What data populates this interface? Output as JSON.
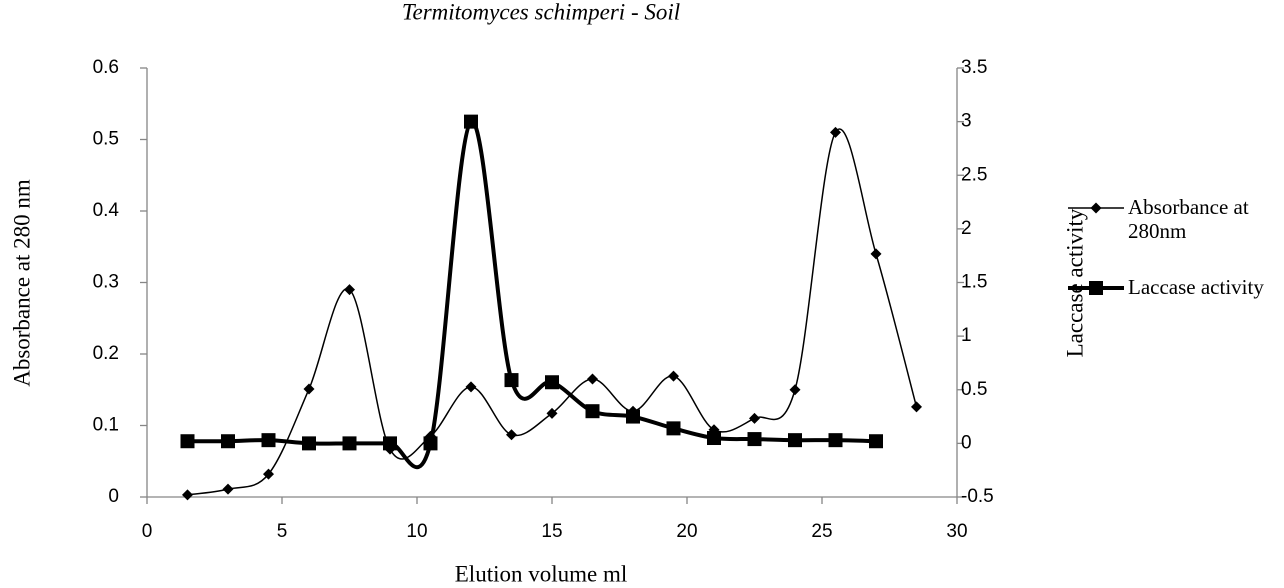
{
  "chart_data": {
    "type": "line",
    "title": "Termitomyces schimperi - Soil",
    "x_label": "Elution volume ml",
    "y_label": "Absorbance at 280 nm",
    "y2_label": "Laccase activity",
    "xlim": [
      0,
      30
    ],
    "xticks": [
      0,
      5,
      10,
      15,
      20,
      25,
      30
    ],
    "ylim": [
      0,
      0.6
    ],
    "yticks": [
      0,
      0.1,
      0.2,
      0.3,
      0.4,
      0.5,
      0.6
    ],
    "y2lim": [
      -0.5,
      3.5
    ],
    "y2ticks": [
      -0.5,
      0,
      0.5,
      1,
      1.5,
      2,
      2.5,
      3,
      3.5
    ],
    "grid": false,
    "legend": "right",
    "smooth": true,
    "series": [
      {
        "name": "Absorbance at 280nm",
        "color": "#000000",
        "marker": "diamond",
        "width": 1.5,
        "x": [
          1.5,
          3,
          4.5,
          6,
          7.5,
          9,
          10.5,
          12,
          13.5,
          15,
          16.5,
          18,
          19.5,
          21,
          22.5,
          24,
          25.5,
          27,
          28.5
        ],
        "values": [
          0.003,
          0.011,
          0.032,
          0.151,
          0.29,
          0.067,
          0.085,
          0.154,
          0.087,
          0.117,
          0.165,
          0.12,
          0.169,
          0.094,
          0.11,
          0.15,
          0.51,
          0.34,
          0.126
        ]
      },
      {
        "name": "Laccase activity",
        "color": "#000000",
        "marker": "square",
        "width": 4,
        "axis": "y2",
        "x": [
          1.5,
          3,
          4.5,
          6,
          7.5,
          9,
          10.5,
          12,
          13.5,
          15,
          16.5,
          18,
          19.5,
          21,
          22.5,
          24,
          25.5,
          27
        ],
        "values": [
          0.02,
          0.02,
          0.03,
          0.0,
          0.0,
          0.0,
          0.0,
          3.0,
          0.59,
          0.57,
          0.3,
          0.25,
          0.14,
          0.05,
          0.04,
          0.03,
          0.03,
          0.02
        ]
      }
    ]
  }
}
